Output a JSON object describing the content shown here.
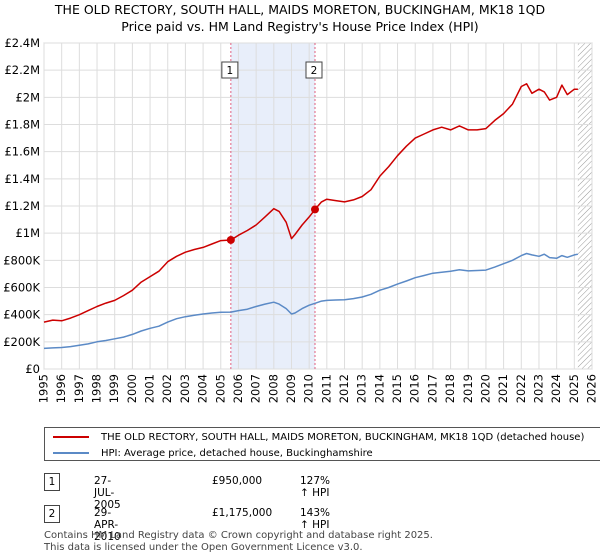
{
  "title_line1": "THE OLD RECTORY, SOUTH HALL, MAIDS MORETON, BUCKINGHAM, MK18 1QD",
  "title_line2": "Price paid vs. HM Land Registry's House Price Index (HPI)",
  "legend": {
    "property_label": "THE OLD RECTORY, SOUTH HALL, MAIDS MORETON, BUCKINGHAM, MK18 1QD (detached house)",
    "hpi_label": "HPI: Average price, detached house, Buckinghamshire"
  },
  "transactions": [
    {
      "num": "1",
      "date": "27-JUL-2005",
      "price": "£950,000",
      "hpi_delta": "127% ↑ HPI"
    },
    {
      "num": "2",
      "date": "29-APR-2010",
      "price": "£1,175,000",
      "hpi_delta": "143% ↑ HPI"
    }
  ],
  "footer_line1": "Contains HM Land Registry data © Crown copyright and database right 2025.",
  "footer_line2": "This data is licensed under the Open Government Licence v3.0.",
  "colors": {
    "property": "#cc0000",
    "hpi": "#5b8ac6",
    "marker_line": "#e06080",
    "shade": "#e8eefa"
  },
  "chart_data": {
    "type": "line",
    "title": "Price paid vs. HM Land Registry's House Price Index (HPI)",
    "xlim": [
      1995,
      2026
    ],
    "ylim": [
      0,
      2400000
    ],
    "x_ticks": [
      1995,
      1996,
      1997,
      1998,
      1999,
      2000,
      2001,
      2002,
      2003,
      2004,
      2005,
      2006,
      2007,
      2008,
      2009,
      2010,
      2011,
      2012,
      2013,
      2014,
      2015,
      2016,
      2017,
      2018,
      2019,
      2020,
      2021,
      2022,
      2023,
      2024,
      2025,
      2026
    ],
    "y_ticks": [
      0,
      200000,
      400000,
      600000,
      800000,
      1000000,
      1200000,
      1400000,
      1600000,
      1800000,
      2000000,
      2200000,
      2400000
    ],
    "y_tick_labels": [
      "£0",
      "£200K",
      "£400K",
      "£600K",
      "£800K",
      "£1M",
      "£1.2M",
      "£1.4M",
      "£1.6M",
      "£1.8M",
      "£2M",
      "£2.2M",
      "£2.4M"
    ],
    "shaded_range": [
      2005.57,
      2010.33
    ],
    "hatched_from": 2025.2,
    "markers": [
      {
        "label": "1",
        "x": 2005.57,
        "y": 950000
      },
      {
        "label": "2",
        "x": 2010.33,
        "y": 1175000
      }
    ],
    "series": [
      {
        "name": "THE OLD RECTORY, SOUTH HALL, MAIDS MORETON, BUCKINGHAM, MK18 1QD (detached house)",
        "x": [
          1995,
          1995.5,
          1996,
          1996.5,
          1997,
          1997.5,
          1998,
          1998.5,
          1999,
          1999.5,
          2000,
          2000.5,
          2001,
          2001.5,
          2002,
          2002.5,
          2003,
          2003.5,
          2004,
          2004.5,
          2005,
          2005.57,
          2006,
          2006.5,
          2007,
          2007.5,
          2008,
          2008.3,
          2008.7,
          2009,
          2009.2,
          2009.6,
          2010,
          2010.33,
          2010.7,
          2011,
          2011.5,
          2012,
          2012.5,
          2013,
          2013.5,
          2014,
          2014.5,
          2015,
          2015.5,
          2016,
          2016.5,
          2017,
          2017.5,
          2018,
          2018.5,
          2019,
          2019.5,
          2020,
          2020.5,
          2021,
          2021.5,
          2022,
          2022.3,
          2022.6,
          2023,
          2023.3,
          2023.6,
          2024,
          2024.3,
          2024.6,
          2025,
          2025.2
        ],
        "values": [
          345000,
          360000,
          355000,
          375000,
          400000,
          430000,
          460000,
          485000,
          505000,
          540000,
          580000,
          640000,
          680000,
          720000,
          790000,
          830000,
          860000,
          880000,
          895000,
          920000,
          945000,
          950000,
          985000,
          1020000,
          1060000,
          1120000,
          1180000,
          1160000,
          1080000,
          960000,
          990000,
          1060000,
          1120000,
          1175000,
          1230000,
          1250000,
          1240000,
          1230000,
          1245000,
          1270000,
          1320000,
          1420000,
          1490000,
          1570000,
          1640000,
          1700000,
          1730000,
          1760000,
          1780000,
          1760000,
          1790000,
          1760000,
          1760000,
          1770000,
          1830000,
          1880000,
          1950000,
          2080000,
          2100000,
          2030000,
          2060000,
          2040000,
          1980000,
          2000000,
          2090000,
          2020000,
          2060000,
          2060000
        ]
      },
      {
        "name": "HPI: Average price, detached house, Buckinghamshire",
        "x": [
          1995,
          1995.5,
          1996,
          1996.5,
          1997,
          1997.5,
          1998,
          1998.5,
          1999,
          1999.5,
          2000,
          2000.5,
          2001,
          2001.5,
          2002,
          2002.5,
          2003,
          2003.5,
          2004,
          2004.5,
          2005,
          2005.57,
          2006,
          2006.5,
          2007,
          2007.5,
          2008,
          2008.3,
          2008.7,
          2009,
          2009.2,
          2009.6,
          2010,
          2010.33,
          2010.7,
          2011,
          2011.5,
          2012,
          2012.5,
          2013,
          2013.5,
          2014,
          2014.5,
          2015,
          2015.5,
          2016,
          2016.5,
          2017,
          2017.5,
          2018,
          2018.5,
          2019,
          2019.5,
          2020,
          2020.5,
          2021,
          2021.5,
          2022,
          2022.3,
          2022.6,
          2023,
          2023.3,
          2023.6,
          2024,
          2024.3,
          2024.6,
          2025,
          2025.2
        ],
        "values": [
          152000,
          155000,
          158000,
          165000,
          175000,
          185000,
          200000,
          210000,
          222000,
          235000,
          255000,
          280000,
          300000,
          315000,
          345000,
          370000,
          385000,
          395000,
          405000,
          412000,
          418000,
          419000,
          430000,
          440000,
          460000,
          478000,
          492000,
          478000,
          445000,
          405000,
          412000,
          445000,
          470000,
          484000,
          500000,
          505000,
          508000,
          510000,
          518000,
          530000,
          550000,
          580000,
          600000,
          625000,
          648000,
          672000,
          688000,
          705000,
          712000,
          720000,
          730000,
          722000,
          725000,
          728000,
          750000,
          775000,
          800000,
          835000,
          850000,
          840000,
          830000,
          845000,
          820000,
          815000,
          835000,
          822000,
          840000,
          845000
        ]
      }
    ]
  }
}
